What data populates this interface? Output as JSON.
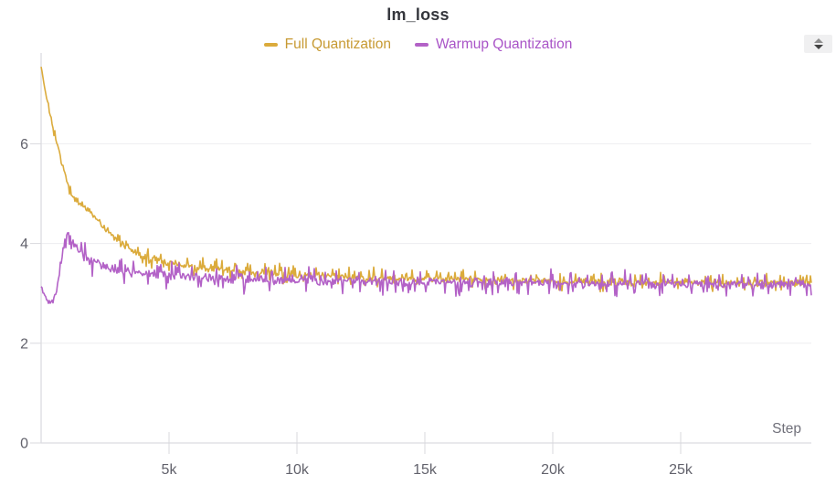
{
  "title": "lm_loss",
  "controls": {
    "stepper": {
      "up_icon": "triangle-up",
      "down_icon": "triangle-down"
    }
  },
  "theme": {
    "background": "#ffffff",
    "title_color": "#34363c",
    "grid_color": "#ededf0",
    "axis_color": "#dcdce1",
    "tick_color": "#d9d9de",
    "tick_label_color": "#62626c",
    "axis_label_color": "#70707a",
    "stepper_bg": "#f0f0f1",
    "stepper_up": "#8e8e8e",
    "stepper_down": "#424242"
  },
  "chart_data": {
    "type": "line",
    "title": "lm_loss",
    "xlabel": "Step",
    "ylabel": "",
    "xlim": [
      0,
      30500
    ],
    "ylim": [
      0,
      7.7
    ],
    "grid": "horizontal",
    "legend_position": "top-center",
    "xticks": [
      {
        "value": 5000,
        "label": "5k"
      },
      {
        "value": 10000,
        "label": "10k"
      },
      {
        "value": 15000,
        "label": "15k"
      },
      {
        "value": 20000,
        "label": "20k"
      },
      {
        "value": 25000,
        "label": "25k"
      }
    ],
    "yticks": [
      {
        "value": 0,
        "label": "0"
      },
      {
        "value": 2,
        "label": "2"
      },
      {
        "value": 4,
        "label": "4"
      },
      {
        "value": 6,
        "label": "6"
      }
    ],
    "series": [
      {
        "name": "Full Quantization",
        "color": "#DBAB3C",
        "label_color": "#C79A33",
        "noise_amplitude": 0.085,
        "points": [
          [
            0,
            7.55
          ],
          [
            100,
            7.25
          ],
          [
            200,
            6.95
          ],
          [
            300,
            6.7
          ],
          [
            400,
            6.45
          ],
          [
            500,
            6.25
          ],
          [
            600,
            6.05
          ],
          [
            700,
            5.85
          ],
          [
            800,
            5.65
          ],
          [
            900,
            5.45
          ],
          [
            1000,
            5.28
          ],
          [
            1100,
            5.12
          ],
          [
            1200,
            4.98
          ],
          [
            1400,
            4.85
          ],
          [
            1600,
            4.76
          ],
          [
            1800,
            4.68
          ],
          [
            2000,
            4.6
          ],
          [
            2200,
            4.48
          ],
          [
            2400,
            4.36
          ],
          [
            2600,
            4.25
          ],
          [
            2800,
            4.15
          ],
          [
            3000,
            4.05
          ],
          [
            3200,
            3.97
          ],
          [
            3500,
            3.9
          ],
          [
            4000,
            3.75
          ],
          [
            4500,
            3.68
          ],
          [
            5000,
            3.62
          ],
          [
            5500,
            3.58
          ],
          [
            6000,
            3.54
          ],
          [
            7000,
            3.48
          ],
          [
            8000,
            3.44
          ],
          [
            9000,
            3.41
          ],
          [
            10000,
            3.38
          ],
          [
            12000,
            3.33
          ],
          [
            14000,
            3.3
          ],
          [
            15000,
            3.29
          ],
          [
            16000,
            3.28
          ],
          [
            18000,
            3.26
          ],
          [
            20000,
            3.24
          ],
          [
            22000,
            3.23
          ],
          [
            24000,
            3.22
          ],
          [
            26000,
            3.22
          ],
          [
            28000,
            3.21
          ],
          [
            30500,
            3.2
          ]
        ]
      },
      {
        "name": "Warmup Quantization",
        "color": "#B362C7",
        "label_color": "#A954C7",
        "noise_amplitude": 0.115,
        "points": [
          [
            0,
            3.15
          ],
          [
            150,
            2.95
          ],
          [
            300,
            2.82
          ],
          [
            400,
            2.8
          ],
          [
            500,
            2.9
          ],
          [
            600,
            3.05
          ],
          [
            700,
            3.3
          ],
          [
            800,
            3.6
          ],
          [
            900,
            3.9
          ],
          [
            1000,
            4.12
          ],
          [
            1080,
            4.2
          ],
          [
            1150,
            4.12
          ],
          [
            1250,
            4.0
          ],
          [
            1350,
            3.92
          ],
          [
            1500,
            3.82
          ],
          [
            1700,
            3.74
          ],
          [
            1900,
            3.67
          ],
          [
            2100,
            3.62
          ],
          [
            2400,
            3.56
          ],
          [
            2700,
            3.52
          ],
          [
            3000,
            3.48
          ],
          [
            3500,
            3.44
          ],
          [
            4000,
            3.41
          ],
          [
            4500,
            3.39
          ],
          [
            5000,
            3.37
          ],
          [
            6000,
            3.34
          ],
          [
            7000,
            3.31
          ],
          [
            8000,
            3.29
          ],
          [
            9000,
            3.28
          ],
          [
            10000,
            3.27
          ],
          [
            12000,
            3.25
          ],
          [
            14000,
            3.23
          ],
          [
            16000,
            3.22
          ],
          [
            18000,
            3.21
          ],
          [
            20000,
            3.2
          ],
          [
            22000,
            3.19
          ],
          [
            24000,
            3.19
          ],
          [
            26000,
            3.18
          ],
          [
            28000,
            3.18
          ],
          [
            30500,
            3.17
          ]
        ]
      }
    ]
  }
}
